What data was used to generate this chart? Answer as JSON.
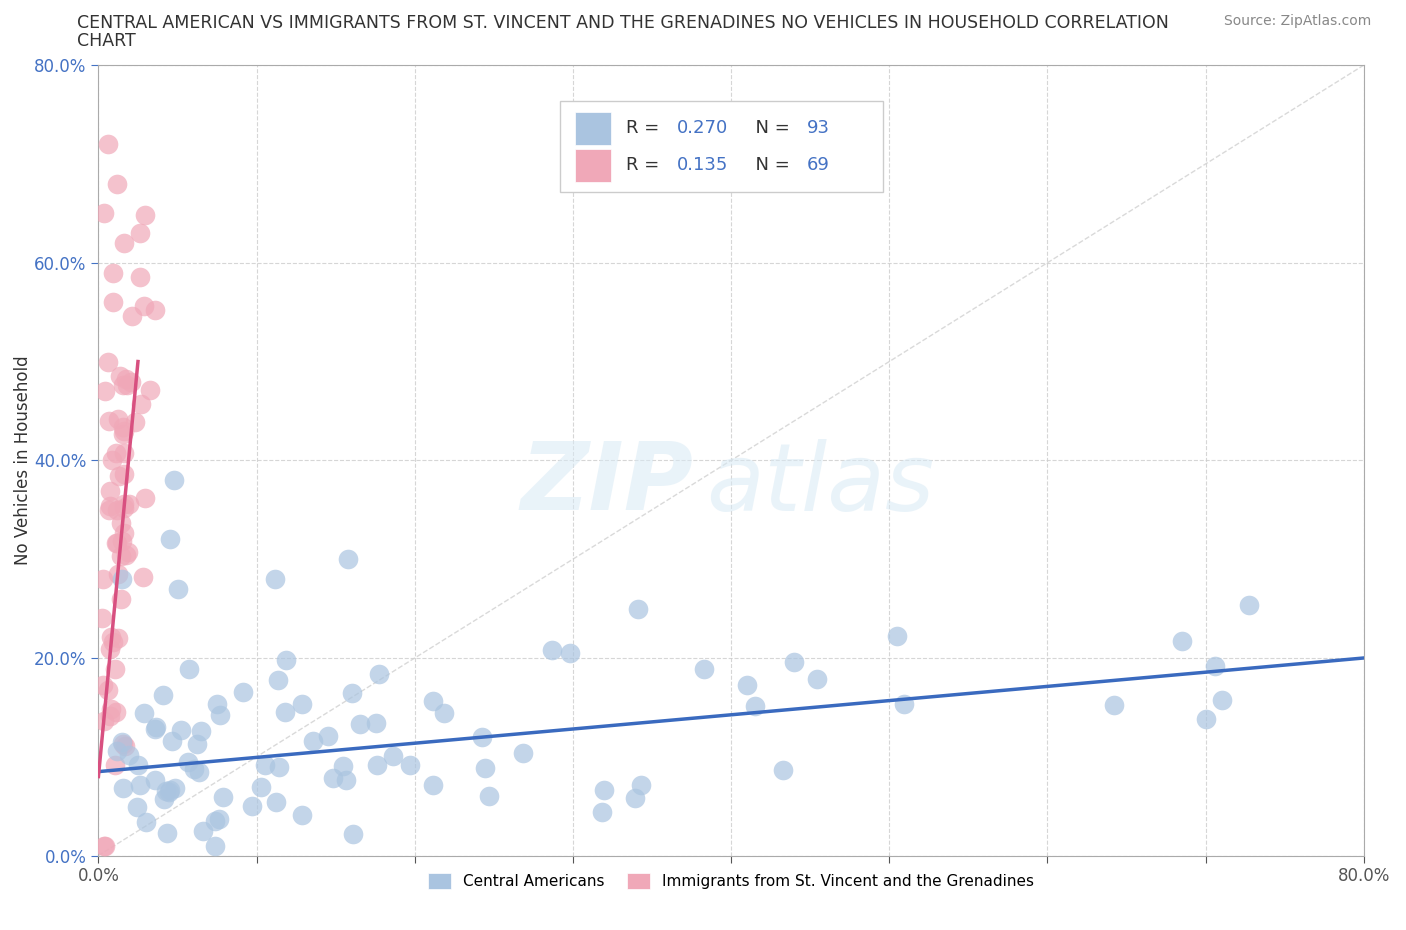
{
  "title_line1": "CENTRAL AMERICAN VS IMMIGRANTS FROM ST. VINCENT AND THE GRENADINES NO VEHICLES IN HOUSEHOLD CORRELATION",
  "title_line2": "CHART",
  "source": "Source: ZipAtlas.com",
  "ylabel": "No Vehicles in Household",
  "xmin": 0.0,
  "xmax": 0.8,
  "ymin": 0.0,
  "ymax": 0.8,
  "blue_R": 0.27,
  "blue_N": 93,
  "pink_R": 0.135,
  "pink_N": 69,
  "blue_color": "#aac4e0",
  "pink_color": "#f0a8b8",
  "blue_line_color": "#3a6abf",
  "pink_line_color": "#d85080",
  "diagonal_color": "#d0d0d0",
  "watermark_zip": "ZIP",
  "watermark_atlas": "atlas",
  "blue_line_x0": 0.0,
  "blue_line_y0": 0.085,
  "blue_line_x1": 0.8,
  "blue_line_y1": 0.2,
  "pink_line_x0": 0.0,
  "pink_line_y0": 0.08,
  "pink_line_x1": 0.025,
  "pink_line_y1": 0.5
}
